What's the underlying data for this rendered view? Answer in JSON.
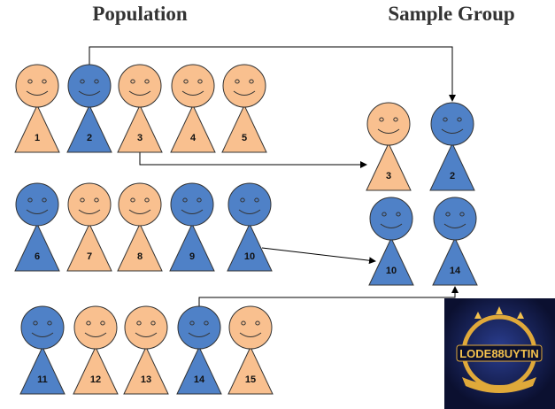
{
  "titles": {
    "population": "Population",
    "sample": "Sample Group"
  },
  "population": [
    {
      "label": "1",
      "color": "#f9c08f"
    },
    {
      "label": "2",
      "color": "#4f81c7"
    },
    {
      "label": "3",
      "color": "#f9c08f"
    },
    {
      "label": "4",
      "color": "#f9c08f"
    },
    {
      "label": "5",
      "color": "#f9c08f"
    },
    {
      "label": "6",
      "color": "#4f81c7"
    },
    {
      "label": "7",
      "color": "#f9c08f"
    },
    {
      "label": "8",
      "color": "#f9c08f"
    },
    {
      "label": "9",
      "color": "#4f81c7"
    },
    {
      "label": "10",
      "color": "#4f81c7"
    },
    {
      "label": "11",
      "color": "#4f81c7"
    },
    {
      "label": "12",
      "color": "#f9c08f"
    },
    {
      "label": "13",
      "color": "#f9c08f"
    },
    {
      "label": "14",
      "color": "#4f81c7"
    },
    {
      "label": "15",
      "color": "#f9c08f"
    }
  ],
  "sample": [
    {
      "label": "3",
      "color": "#f9c08f"
    },
    {
      "label": "2",
      "color": "#4f81c7"
    },
    {
      "label": "10",
      "color": "#4f81c7"
    },
    {
      "label": "14",
      "color": "#4f81c7"
    }
  ],
  "logo": {
    "text": "LODE88UYTIN"
  }
}
